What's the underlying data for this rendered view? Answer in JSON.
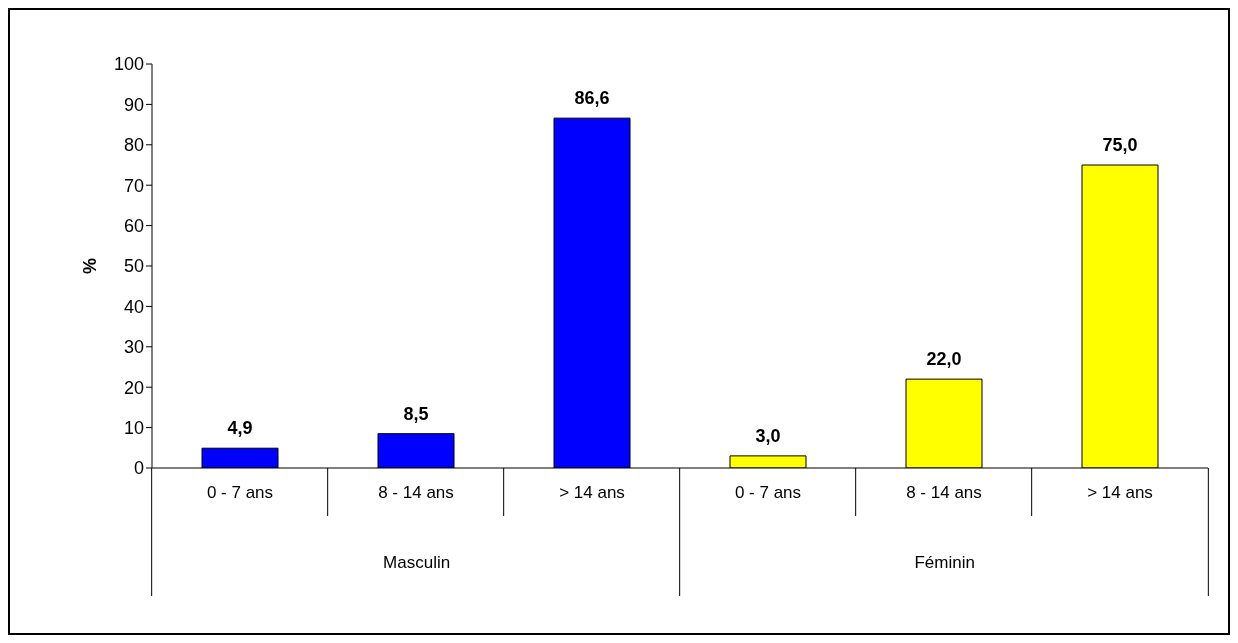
{
  "chart_data": {
    "type": "bar",
    "ylabel": "%",
    "categories": [
      "0 - 7 ans",
      "8 - 14 ans",
      "> 14 ans",
      "0 - 7 ans",
      "8 - 14 ans",
      "> 14 ans"
    ],
    "series": [
      {
        "color": "#0000ff",
        "values": [
          4.9,
          8.5,
          86.6,
          null,
          null,
          null
        ],
        "value_labels": [
          "4,9",
          "8,5",
          "86,6",
          null,
          null,
          null
        ]
      },
      {
        "color": "#ffff00",
        "values": [
          null,
          null,
          null,
          3.0,
          22.0,
          75.0
        ],
        "value_labels": [
          null,
          null,
          null,
          "3,0",
          "22,0",
          "75,0"
        ]
      }
    ],
    "annotations": [
      "Masculin",
      "Féminin"
    ],
    "ylim": [
      0,
      100
    ],
    "yticks": [
      0,
      10,
      20,
      30,
      40,
      50,
      60,
      70,
      80,
      90,
      100
    ],
    "grid": false,
    "legend": false
  }
}
